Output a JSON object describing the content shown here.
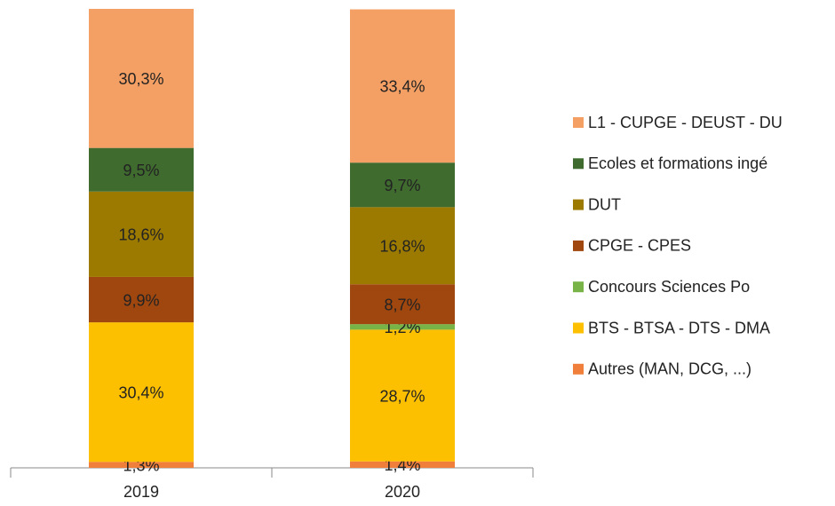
{
  "chart_data": {
    "type": "stacked_bar",
    "categories": [
      "2019",
      "2020"
    ],
    "series": [
      {
        "name": "Autres (MAN, DCG, ...)",
        "color": "#ef7f3a",
        "values": [
          1.3,
          1.4
        ],
        "value_labels": [
          "1,3%",
          "1,4%"
        ]
      },
      {
        "name": "BTS - BTSA - DTS - DMA",
        "color": "#fdc000",
        "values": [
          30.4,
          28.7
        ],
        "value_labels": [
          "30,4%",
          "28,7%"
        ]
      },
      {
        "name": "Concours Sciences Po",
        "color": "#77b347",
        "values": [
          null,
          1.2
        ],
        "value_labels": [
          null,
          "1,2%"
        ]
      },
      {
        "name": "CPGE - CPES",
        "color": "#a0470f",
        "values": [
          9.9,
          8.7
        ],
        "value_labels": [
          "9,9%",
          "8,7%"
        ]
      },
      {
        "name": "DUT",
        "color": "#9c7a00",
        "values": [
          18.6,
          16.8
        ],
        "value_labels": [
          "18,6%",
          "16,8%"
        ]
      },
      {
        "name": "Ecoles et formations ingé",
        "color": "#3f6b2f",
        "values": [
          9.5,
          9.7
        ],
        "value_labels": [
          "9,5%",
          "9,7%"
        ]
      },
      {
        "name": "L1 - CUPGE - DEUST - DU",
        "color": "#f4a064",
        "values": [
          30.3,
          33.4
        ],
        "value_labels": [
          "30,3%",
          "33,4%"
        ]
      }
    ],
    "ylim": [
      0,
      100
    ],
    "legend": "right"
  }
}
